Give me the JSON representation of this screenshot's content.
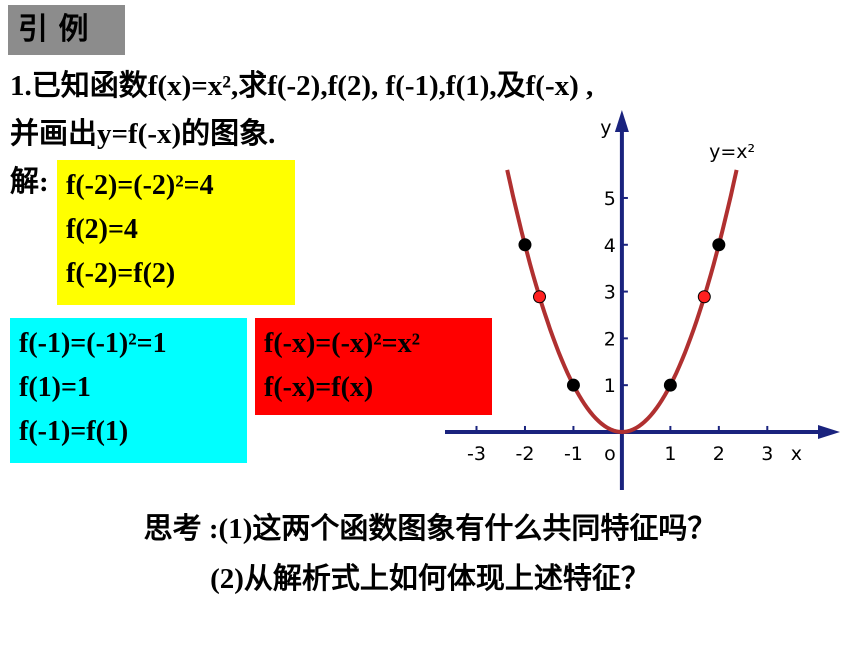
{
  "title": "引 例",
  "problem": [
    "1.已知函数f(x)=x²,求f(-2),f(2), f(-1),f(1),及f(-x) ,",
    "并画出y=f(-x)的图象."
  ],
  "solution_label": "解:",
  "boxes": [
    {
      "color": "#ffff00",
      "lines": [
        "f(-2)=(-2)²=4",
        "f(2)=4",
        "f(-2)=f(2)"
      ]
    },
    {
      "color": "#00ffff",
      "lines": [
        "f(-1)=(-1)²=1",
        "f(1)=1",
        "f(-1)=f(1)"
      ]
    },
    {
      "color": "#ff0000",
      "lines": [
        "f(-x)=(-x)²=x²",
        "f(-x)=f(x)"
      ]
    }
  ],
  "graph": {
    "curve_label": "y=x²",
    "x_label": "x",
    "y_label": "y",
    "origin_label": "o",
    "xlim": [
      -3.65,
      4.5
    ],
    "ylim": [
      -1.24,
      6.88
    ],
    "xticks": [
      -3,
      -2,
      -1,
      1,
      2,
      3
    ],
    "yticks": [
      1,
      2,
      3,
      4,
      5
    ],
    "curve_color": "#b03030",
    "axis_color": "#1a237e",
    "points": [
      {
        "x": -2,
        "y": 4,
        "color": "#000000"
      },
      {
        "x": 2,
        "y": 4,
        "color": "#000000"
      },
      {
        "x": -1,
        "y": 1,
        "color": "#000000"
      },
      {
        "x": 1,
        "y": 1,
        "color": "#000000"
      },
      {
        "x": -1.7,
        "y": 2.89,
        "color": "#ff2020"
      },
      {
        "x": 1.7,
        "y": 2.89,
        "color": "#ff2020"
      }
    ]
  },
  "questions": [
    "思考 :(1)这两个函数图象有什么共同特征吗？",
    "(2)从解析式上如何体现上述特征？"
  ]
}
